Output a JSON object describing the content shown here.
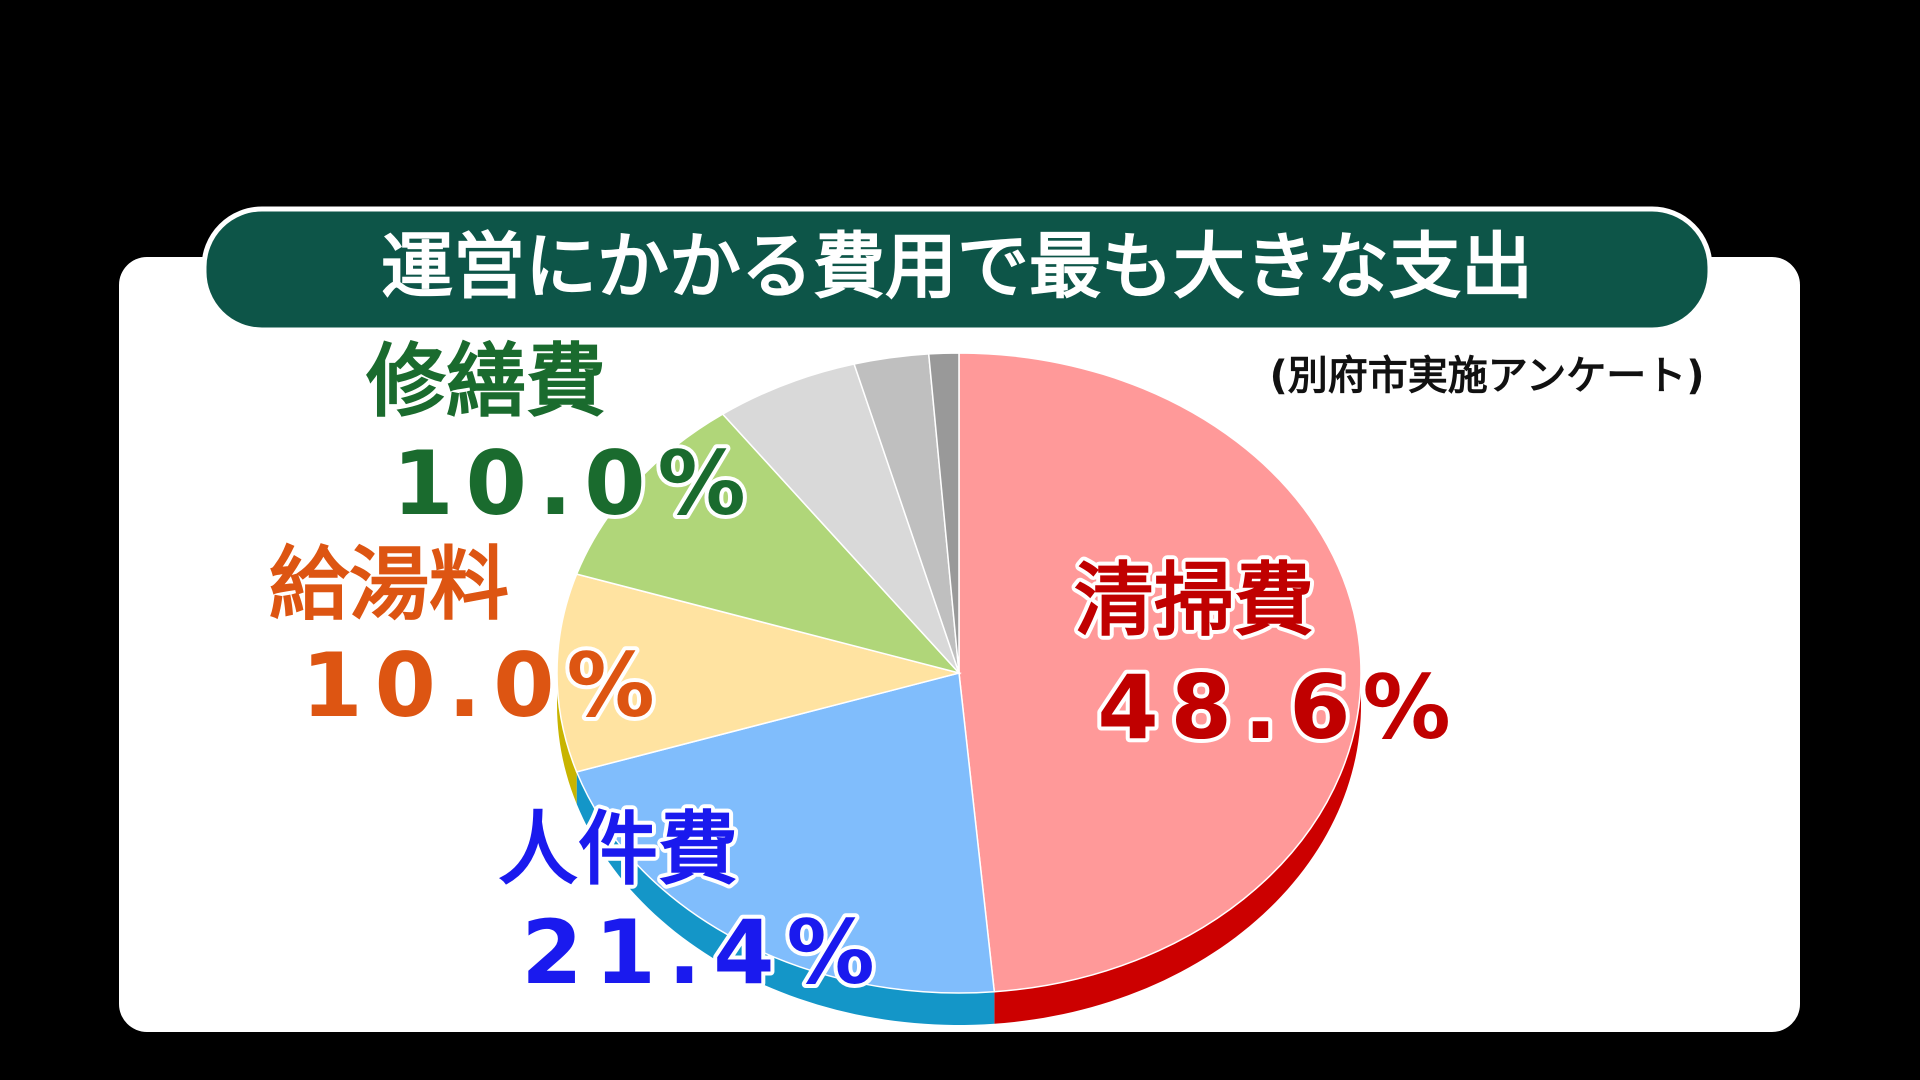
{
  "chart_data": {
    "type": "pie",
    "title": "運営にかかる費用で最も大きな支出",
    "subtitle": "(別府市実施アンケート)",
    "categories": [
      "清掃費",
      "人件費",
      "給湯料",
      "修繕費",
      null,
      null,
      null
    ],
    "values": [
      48.6,
      21.4,
      10.0,
      10.0,
      5.8,
      3.0,
      1.2
    ],
    "value_labels": [
      "48.6%",
      "21.4%",
      "10.0%",
      "10.0%",
      null,
      null,
      null
    ],
    "colors": [
      "#ff9999",
      "#80bdfc",
      "#ffe3a1",
      "#b0d679",
      "#d9d9d9",
      "#bfbfbf",
      "#999999"
    ],
    "side_colors": [
      "#cc0000",
      "#1496c8",
      "#c8b400",
      "#8aaa50",
      "#a6a6a6",
      "#8c8c8c",
      "#707070"
    ],
    "label_colors": [
      "#c00000",
      "#1a1aee",
      "#dd5512",
      "#1a6b2e",
      null,
      null,
      null
    ]
  }
}
